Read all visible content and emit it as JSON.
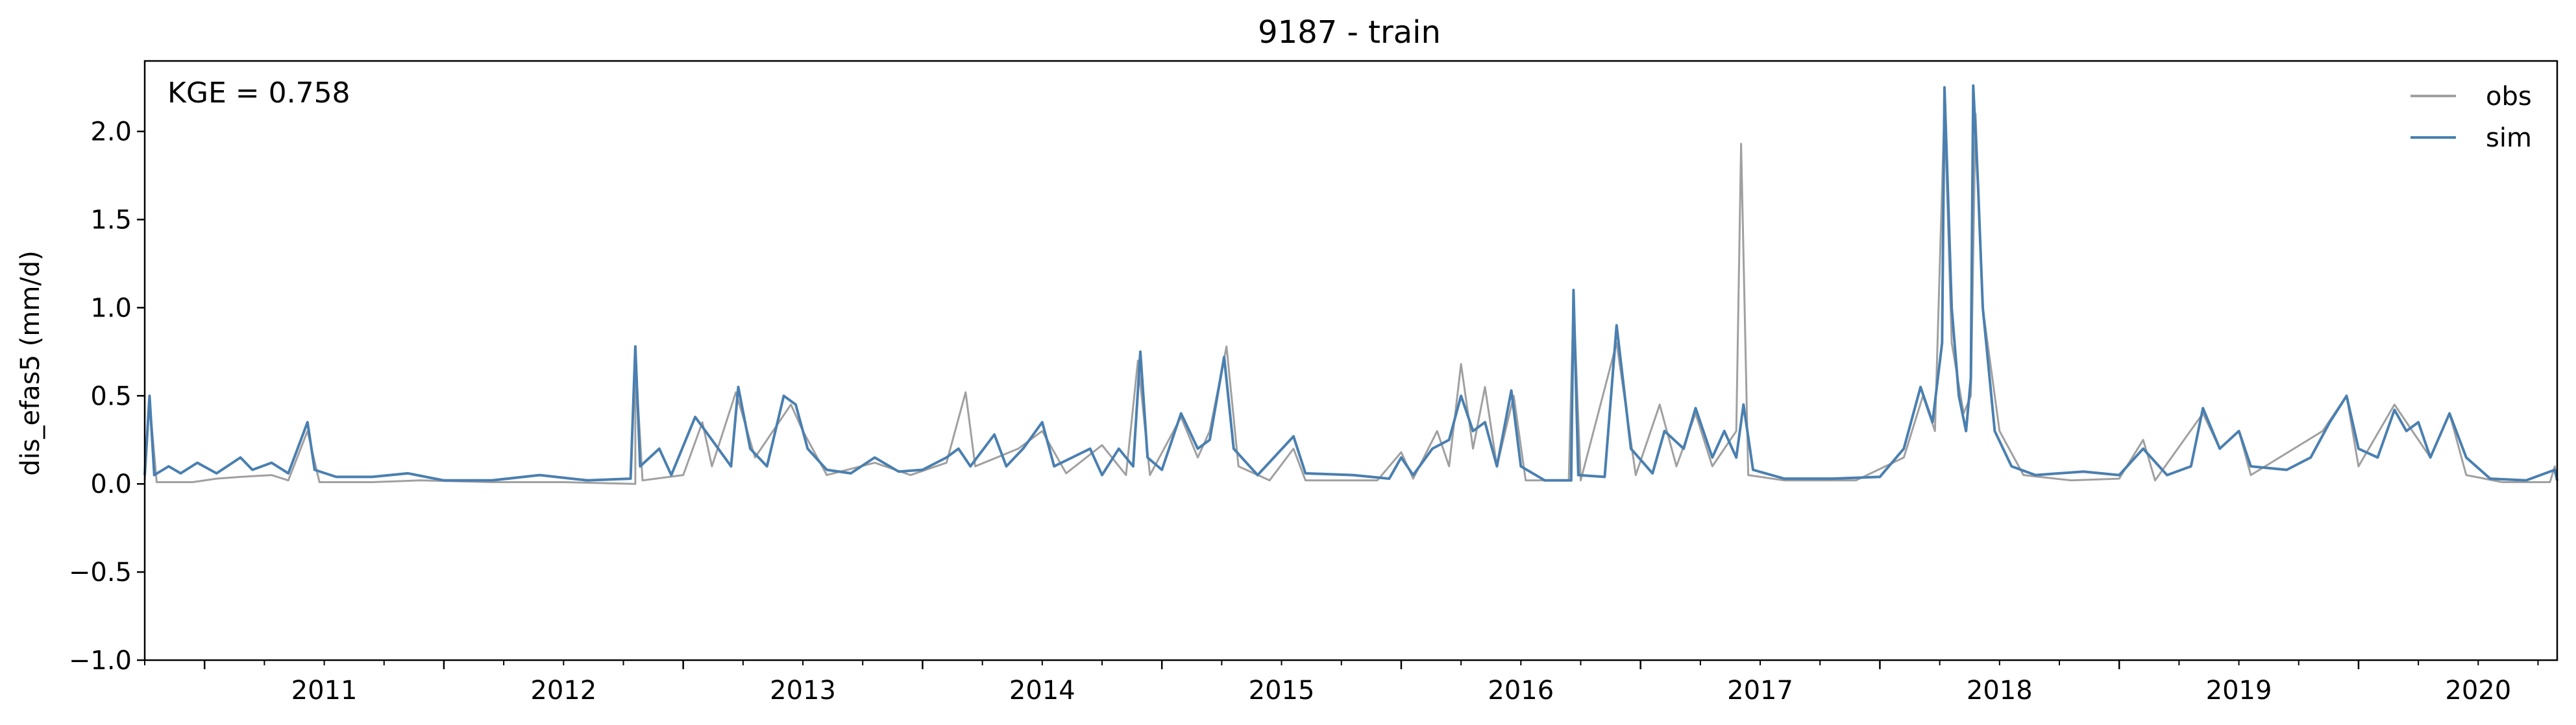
{
  "chart_data": {
    "type": "line",
    "title": "9187 - train",
    "xlabel": "",
    "ylabel": "dis_efas5 (mm/d)",
    "annotation": "KGE = 0.758",
    "x_start": "2010-10",
    "x_end": "2020-10",
    "xlim": [
      2010.75,
      2020.83
    ],
    "ylim": [
      -1.0,
      2.4
    ],
    "xticks": [
      2011,
      2012,
      2013,
      2014,
      2015,
      2016,
      2017,
      2018,
      2019,
      2020
    ],
    "xtick_labels": [
      "2011",
      "2012",
      "2013",
      "2014",
      "2015",
      "2016",
      "2017",
      "2018",
      "2019",
      "2020"
    ],
    "yticks": [
      -1.0,
      -0.5,
      0.0,
      0.5,
      1.0,
      1.5,
      2.0
    ],
    "ytick_labels": [
      "−1.0",
      "−0.5",
      "0.0",
      "0.5",
      "1.0",
      "1.5",
      "2.0"
    ],
    "grid": false,
    "legend_position": "top-right",
    "series": [
      {
        "name": "obs",
        "color": "#a0a0a0",
        "points": [
          [
            2010.75,
            0.02
          ],
          [
            2010.77,
            0.47
          ],
          [
            2010.8,
            0.01
          ],
          [
            2010.95,
            0.01
          ],
          [
            2011.05,
            0.03
          ],
          [
            2011.15,
            0.04
          ],
          [
            2011.28,
            0.05
          ],
          [
            2011.35,
            0.02
          ],
          [
            2011.43,
            0.3
          ],
          [
            2011.48,
            0.01
          ],
          [
            2011.7,
            0.01
          ],
          [
            2011.9,
            0.02
          ],
          [
            2012.2,
            0.01
          ],
          [
            2012.5,
            0.01
          ],
          [
            2012.8,
            0.0
          ],
          [
            2012.8,
            0.72
          ],
          [
            2012.83,
            0.02
          ],
          [
            2013.0,
            0.05
          ],
          [
            2013.08,
            0.35
          ],
          [
            2013.12,
            0.1
          ],
          [
            2013.22,
            0.52
          ],
          [
            2013.3,
            0.15
          ],
          [
            2013.45,
            0.45
          ],
          [
            2013.5,
            0.3
          ],
          [
            2013.6,
            0.05
          ],
          [
            2013.8,
            0.12
          ],
          [
            2013.95,
            0.05
          ],
          [
            2014.1,
            0.12
          ],
          [
            2014.18,
            0.52
          ],
          [
            2014.22,
            0.1
          ],
          [
            2014.4,
            0.2
          ],
          [
            2014.5,
            0.3
          ],
          [
            2014.6,
            0.06
          ],
          [
            2014.75,
            0.22
          ],
          [
            2014.85,
            0.05
          ],
          [
            2014.9,
            0.7
          ],
          [
            2014.95,
            0.05
          ],
          [
            2015.08,
            0.38
          ],
          [
            2015.15,
            0.15
          ],
          [
            2015.2,
            0.3
          ],
          [
            2015.27,
            0.78
          ],
          [
            2015.32,
            0.1
          ],
          [
            2015.45,
            0.02
          ],
          [
            2015.55,
            0.2
          ],
          [
            2015.6,
            0.02
          ],
          [
            2015.9,
            0.02
          ],
          [
            2016.0,
            0.18
          ],
          [
            2016.05,
            0.03
          ],
          [
            2016.15,
            0.3
          ],
          [
            2016.2,
            0.1
          ],
          [
            2016.25,
            0.68
          ],
          [
            2016.3,
            0.2
          ],
          [
            2016.35,
            0.55
          ],
          [
            2016.4,
            0.1
          ],
          [
            2016.47,
            0.5
          ],
          [
            2016.52,
            0.02
          ],
          [
            2016.7,
            0.02
          ],
          [
            2016.72,
            1.05
          ],
          [
            2016.75,
            0.02
          ],
          [
            2016.9,
            0.8
          ],
          [
            2016.98,
            0.05
          ],
          [
            2017.08,
            0.45
          ],
          [
            2017.15,
            0.1
          ],
          [
            2017.23,
            0.4
          ],
          [
            2017.3,
            0.1
          ],
          [
            2017.4,
            0.3
          ],
          [
            2017.42,
            1.93
          ],
          [
            2017.45,
            0.05
          ],
          [
            2017.6,
            0.02
          ],
          [
            2017.9,
            0.02
          ],
          [
            2018.1,
            0.15
          ],
          [
            2018.18,
            0.5
          ],
          [
            2018.23,
            0.3
          ],
          [
            2018.27,
            2.15
          ],
          [
            2018.3,
            0.8
          ],
          [
            2018.35,
            0.4
          ],
          [
            2018.38,
            0.5
          ],
          [
            2018.4,
            2.1
          ],
          [
            2018.43,
            1.0
          ],
          [
            2018.5,
            0.3
          ],
          [
            2018.6,
            0.05
          ],
          [
            2018.8,
            0.02
          ],
          [
            2019.0,
            0.03
          ],
          [
            2019.1,
            0.25
          ],
          [
            2019.15,
            0.02
          ],
          [
            2019.35,
            0.4
          ],
          [
            2019.42,
            0.2
          ],
          [
            2019.5,
            0.3
          ],
          [
            2019.55,
            0.05
          ],
          [
            2019.85,
            0.3
          ],
          [
            2019.95,
            0.5
          ],
          [
            2020.0,
            0.1
          ],
          [
            2020.15,
            0.45
          ],
          [
            2020.2,
            0.35
          ],
          [
            2020.3,
            0.15
          ],
          [
            2020.38,
            0.4
          ],
          [
            2020.45,
            0.05
          ],
          [
            2020.6,
            0.01
          ],
          [
            2020.8,
            0.01
          ],
          [
            2020.82,
            0.1
          ],
          [
            2020.83,
            0.02
          ]
        ]
      },
      {
        "name": "sim",
        "color": "#4a7fb0",
        "points": [
          [
            2010.75,
            0.05
          ],
          [
            2010.77,
            0.5
          ],
          [
            2010.79,
            0.05
          ],
          [
            2010.85,
            0.1
          ],
          [
            2010.9,
            0.06
          ],
          [
            2010.97,
            0.12
          ],
          [
            2011.05,
            0.06
          ],
          [
            2011.15,
            0.15
          ],
          [
            2011.2,
            0.08
          ],
          [
            2011.28,
            0.12
          ],
          [
            2011.35,
            0.06
          ],
          [
            2011.43,
            0.35
          ],
          [
            2011.46,
            0.08
          ],
          [
            2011.55,
            0.04
          ],
          [
            2011.7,
            0.04
          ],
          [
            2011.85,
            0.06
          ],
          [
            2012.0,
            0.02
          ],
          [
            2012.2,
            0.02
          ],
          [
            2012.4,
            0.05
          ],
          [
            2012.6,
            0.02
          ],
          [
            2012.78,
            0.03
          ],
          [
            2012.8,
            0.78
          ],
          [
            2012.82,
            0.1
          ],
          [
            2012.9,
            0.2
          ],
          [
            2012.95,
            0.05
          ],
          [
            2013.05,
            0.38
          ],
          [
            2013.12,
            0.25
          ],
          [
            2013.2,
            0.1
          ],
          [
            2013.23,
            0.55
          ],
          [
            2013.28,
            0.2
          ],
          [
            2013.35,
            0.1
          ],
          [
            2013.42,
            0.5
          ],
          [
            2013.47,
            0.45
          ],
          [
            2013.52,
            0.2
          ],
          [
            2013.6,
            0.08
          ],
          [
            2013.7,
            0.06
          ],
          [
            2013.8,
            0.15
          ],
          [
            2013.9,
            0.07
          ],
          [
            2014.0,
            0.08
          ],
          [
            2014.1,
            0.15
          ],
          [
            2014.15,
            0.2
          ],
          [
            2014.2,
            0.1
          ],
          [
            2014.3,
            0.28
          ],
          [
            2014.35,
            0.1
          ],
          [
            2014.42,
            0.2
          ],
          [
            2014.5,
            0.35
          ],
          [
            2014.55,
            0.1
          ],
          [
            2014.7,
            0.2
          ],
          [
            2014.75,
            0.05
          ],
          [
            2014.82,
            0.2
          ],
          [
            2014.88,
            0.1
          ],
          [
            2014.91,
            0.75
          ],
          [
            2014.94,
            0.15
          ],
          [
            2015.0,
            0.08
          ],
          [
            2015.08,
            0.4
          ],
          [
            2015.15,
            0.2
          ],
          [
            2015.2,
            0.25
          ],
          [
            2015.26,
            0.72
          ],
          [
            2015.3,
            0.2
          ],
          [
            2015.4,
            0.05
          ],
          [
            2015.55,
            0.27
          ],
          [
            2015.6,
            0.06
          ],
          [
            2015.8,
            0.05
          ],
          [
            2015.95,
            0.03
          ],
          [
            2016.0,
            0.15
          ],
          [
            2016.05,
            0.05
          ],
          [
            2016.13,
            0.2
          ],
          [
            2016.2,
            0.25
          ],
          [
            2016.25,
            0.5
          ],
          [
            2016.3,
            0.3
          ],
          [
            2016.35,
            0.35
          ],
          [
            2016.4,
            0.1
          ],
          [
            2016.46,
            0.53
          ],
          [
            2016.5,
            0.1
          ],
          [
            2016.6,
            0.02
          ],
          [
            2016.71,
            0.02
          ],
          [
            2016.72,
            1.1
          ],
          [
            2016.74,
            0.05
          ],
          [
            2016.85,
            0.04
          ],
          [
            2016.9,
            0.9
          ],
          [
            2016.96,
            0.2
          ],
          [
            2017.05,
            0.06
          ],
          [
            2017.1,
            0.3
          ],
          [
            2017.18,
            0.2
          ],
          [
            2017.23,
            0.43
          ],
          [
            2017.3,
            0.15
          ],
          [
            2017.35,
            0.3
          ],
          [
            2017.4,
            0.15
          ],
          [
            2017.43,
            0.45
          ],
          [
            2017.47,
            0.08
          ],
          [
            2017.6,
            0.03
          ],
          [
            2017.8,
            0.03
          ],
          [
            2018.0,
            0.04
          ],
          [
            2018.1,
            0.2
          ],
          [
            2018.17,
            0.55
          ],
          [
            2018.22,
            0.35
          ],
          [
            2018.26,
            0.8
          ],
          [
            2018.27,
            2.25
          ],
          [
            2018.3,
            1.0
          ],
          [
            2018.33,
            0.5
          ],
          [
            2018.36,
            0.3
          ],
          [
            2018.38,
            0.6
          ],
          [
            2018.39,
            2.26
          ],
          [
            2018.41,
            1.7
          ],
          [
            2018.43,
            1.0
          ],
          [
            2018.48,
            0.3
          ],
          [
            2018.55,
            0.1
          ],
          [
            2018.65,
            0.05
          ],
          [
            2018.85,
            0.07
          ],
          [
            2019.0,
            0.05
          ],
          [
            2019.1,
            0.2
          ],
          [
            2019.2,
            0.05
          ],
          [
            2019.3,
            0.1
          ],
          [
            2019.35,
            0.43
          ],
          [
            2019.42,
            0.2
          ],
          [
            2019.5,
            0.3
          ],
          [
            2019.55,
            0.1
          ],
          [
            2019.7,
            0.08
          ],
          [
            2019.8,
            0.15
          ],
          [
            2019.88,
            0.35
          ],
          [
            2019.95,
            0.5
          ],
          [
            2020.0,
            0.2
          ],
          [
            2020.08,
            0.15
          ],
          [
            2020.15,
            0.42
          ],
          [
            2020.2,
            0.3
          ],
          [
            2020.25,
            0.35
          ],
          [
            2020.3,
            0.15
          ],
          [
            2020.38,
            0.4
          ],
          [
            2020.45,
            0.15
          ],
          [
            2020.55,
            0.03
          ],
          [
            2020.7,
            0.02
          ],
          [
            2020.82,
            0.08
          ],
          [
            2020.83,
            0.02
          ]
        ]
      }
    ]
  }
}
